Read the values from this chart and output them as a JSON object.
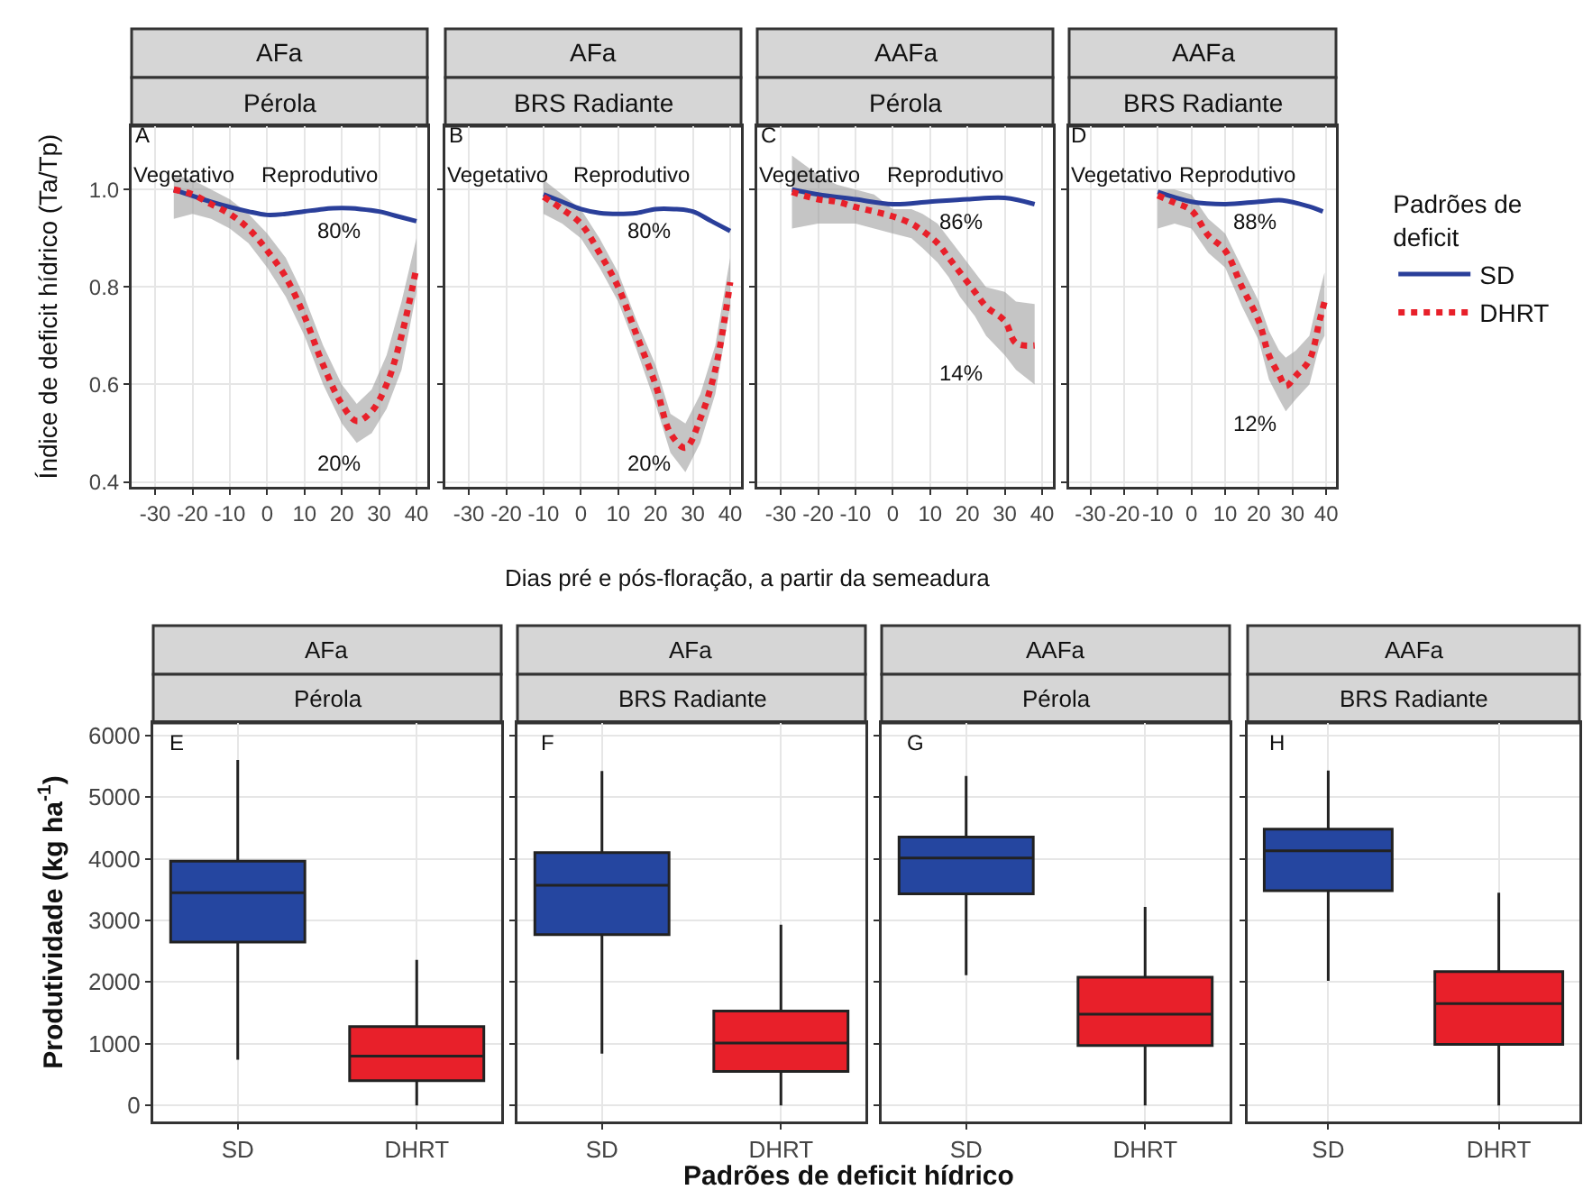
{
  "chart_data": [
    {
      "type": "line",
      "title": "AFa",
      "subtitle": "Pérola",
      "ylabel": "Índice de deficit hídrico (Ta/Tp)",
      "xlabel": "Dias pré e pós-floração, a partir da semeadura",
      "xlim": [
        -36.3,
        42.9
      ],
      "xticks": [
        -30,
        -20,
        -10,
        0,
        10,
        20,
        30,
        40
      ],
      "ylim": [
        0.39,
        1.13
      ],
      "yticks": [
        0.4,
        0.6,
        0.8,
        {
          "value": 1,
          "label": "1.0"
        }
      ],
      "grid": true,
      "legend": false,
      "annotations": [
        "A",
        "Vegetativo",
        "Reprodutivo",
        "80%",
        "20%"
      ],
      "series": [
        {
          "color": "#2a3f9a",
          "line_style": "solid",
          "x": [
            -25,
            -15,
            -5,
            0,
            5,
            10,
            15,
            20,
            25,
            30,
            35,
            40
          ],
          "values": [
            1.0,
            0.975,
            0.955,
            0.948,
            0.95,
            0.955,
            0.96,
            0.962,
            0.96,
            0.955,
            0.945,
            0.935
          ]
        },
        {
          "color": "#e8202a",
          "line_style": "dotted",
          "x": [
            -25,
            -20,
            -15,
            -10,
            -5,
            0,
            5,
            10,
            15,
            20,
            24,
            28,
            32,
            36,
            40
          ],
          "values": [
            1.0,
            0.99,
            0.97,
            0.95,
            0.92,
            0.875,
            0.82,
            0.74,
            0.64,
            0.56,
            0.525,
            0.545,
            0.6,
            0.7,
            0.84
          ],
          "lower": [
            0.94,
            0.95,
            0.94,
            0.92,
            0.89,
            0.84,
            0.78,
            0.7,
            0.6,
            0.52,
            0.48,
            0.5,
            0.55,
            0.63,
            0.79
          ],
          "upper": [
            1.03,
            1.02,
            1.0,
            0.98,
            0.95,
            0.91,
            0.86,
            0.78,
            0.68,
            0.6,
            0.56,
            0.59,
            0.66,
            0.77,
            0.9
          ]
        }
      ]
    },
    {
      "type": "line",
      "title": "AFa",
      "subtitle": "BRS Radiante",
      "xlim": [
        -36.3,
        42.9
      ],
      "xticks": [
        -30,
        -20,
        -10,
        0,
        10,
        20,
        30,
        40
      ],
      "ylim": [
        0.39,
        1.13
      ],
      "yticks": [
        0.4,
        0.6,
        0.8,
        1
      ],
      "grid": true,
      "legend": false,
      "tick_labels": "x",
      "annotations": [
        "B",
        "Vegetativo",
        "Reprodutivo",
        "80%",
        "20%"
      ],
      "series": [
        {
          "color": "#2a3f9a",
          "line_style": "solid",
          "x": [
            -10,
            -5,
            0,
            5,
            10,
            15,
            20,
            25,
            30,
            35,
            40
          ],
          "values": [
            0.99,
            0.975,
            0.96,
            0.952,
            0.95,
            0.952,
            0.96,
            0.96,
            0.955,
            0.935,
            0.915
          ]
        },
        {
          "color": "#e8202a",
          "line_style": "dotted",
          "x": [
            -10,
            -5,
            0,
            5,
            10,
            15,
            20,
            24,
            28,
            32,
            36,
            40
          ],
          "values": [
            0.985,
            0.96,
            0.93,
            0.87,
            0.8,
            0.7,
            0.6,
            0.5,
            0.47,
            0.53,
            0.63,
            0.81
          ],
          "lower": [
            0.95,
            0.93,
            0.9,
            0.84,
            0.77,
            0.67,
            0.56,
            0.46,
            0.42,
            0.48,
            0.58,
            0.76
          ],
          "upper": [
            1.02,
            0.99,
            0.96,
            0.9,
            0.83,
            0.73,
            0.64,
            0.54,
            0.52,
            0.58,
            0.68,
            0.86
          ]
        }
      ]
    },
    {
      "type": "line",
      "title": "AAFa",
      "subtitle": "Pérola",
      "xlim": [
        -36.3,
        42.9
      ],
      "xticks": [
        -30,
        -20,
        -10,
        0,
        10,
        20,
        30,
        40
      ],
      "ylim": [
        0.39,
        1.13
      ],
      "yticks": [
        0.4,
        0.6,
        0.8,
        1
      ],
      "grid": true,
      "legend": false,
      "tick_labels": "x",
      "annotations": [
        "C",
        "Vegetativo",
        "Reprodutivo",
        "86%",
        "14%"
      ],
      "series": [
        {
          "color": "#2a3f9a",
          "line_style": "solid",
          "x": [
            -27,
            -20,
            -10,
            0,
            10,
            20,
            30,
            38
          ],
          "values": [
            1.0,
            0.99,
            0.98,
            0.97,
            0.975,
            0.98,
            0.983,
            0.97
          ]
        },
        {
          "color": "#e8202a",
          "line_style": "dotted",
          "x": [
            -27,
            -20,
            -15,
            -10,
            -5,
            0,
            5,
            8,
            12,
            15,
            18,
            22,
            25,
            30,
            33,
            38
          ],
          "values": [
            0.995,
            0.98,
            0.975,
            0.964,
            0.955,
            0.945,
            0.93,
            0.915,
            0.89,
            0.86,
            0.83,
            0.79,
            0.76,
            0.73,
            0.685,
            0.68
          ],
          "lower": [
            0.92,
            0.93,
            0.93,
            0.93,
            0.92,
            0.91,
            0.9,
            0.88,
            0.85,
            0.82,
            0.78,
            0.74,
            0.7,
            0.66,
            0.63,
            0.6
          ],
          "upper": [
            1.07,
            1.03,
            1.01,
            1.0,
            0.99,
            0.96,
            0.96,
            0.95,
            0.93,
            0.9,
            0.87,
            0.83,
            0.8,
            0.79,
            0.77,
            0.765
          ]
        }
      ]
    },
    {
      "type": "line",
      "title": "AAFa",
      "subtitle": "BRS Radiante",
      "xlim": [
        -36.3,
        42.9
      ],
      "xticks": [
        -30,
        -20,
        -10,
        0,
        10,
        20,
        30,
        40
      ],
      "ylim": [
        0.39,
        1.13
      ],
      "yticks": [
        0.4,
        0.6,
        0.8,
        1
      ],
      "grid": true,
      "legend": "right",
      "legend_title": "Padrões de deficit",
      "tick_labels": "x",
      "annotations": [
        "D",
        "Vegetativo",
        "Reprodutivo",
        "88%",
        "12%"
      ],
      "series": [
        {
          "name": "SD",
          "color": "#2a3f9a",
          "line_style": "solid",
          "x": [
            -10,
            0,
            10,
            20,
            27,
            35,
            39
          ],
          "values": [
            0.995,
            0.975,
            0.97,
            0.975,
            0.978,
            0.965,
            0.955
          ]
        },
        {
          "name": "DHRT",
          "color": "#e8202a",
          "line_style": "dotted",
          "x": [
            -10,
            -5,
            0,
            5,
            10,
            15,
            20,
            23,
            26,
            28,
            31,
            35,
            38,
            39.5
          ],
          "values": [
            0.988,
            0.973,
            0.957,
            0.906,
            0.875,
            0.8,
            0.73,
            0.66,
            0.62,
            0.597,
            0.618,
            0.65,
            0.73,
            0.77
          ],
          "lower": [
            0.92,
            0.93,
            0.92,
            0.87,
            0.84,
            0.76,
            0.69,
            0.61,
            0.57,
            0.545,
            0.57,
            0.6,
            0.68,
            0.7
          ],
          "upper": [
            1.0,
            1.0,
            0.99,
            0.94,
            0.91,
            0.84,
            0.77,
            0.71,
            0.67,
            0.655,
            0.67,
            0.7,
            0.79,
            0.83
          ]
        }
      ]
    },
    {
      "type": "box",
      "title": "AFa",
      "subtitle": "Pérola",
      "ylabel": "Produtividade (kg ha$^{-1}$)",
      "categories": [
        "SD",
        "DHRT"
      ],
      "colors": [
        "#2546a0",
        "#e8202a"
      ],
      "ylim": [
        -260,
        6200
      ],
      "yticks": [
        0,
        1000,
        2000,
        3000,
        4000,
        5000,
        6000
      ],
      "grid": true,
      "annotations": [
        "E"
      ],
      "boxes": [
        {
          "low": 740,
          "q1": 2650,
          "median": 3450,
          "q3": 3960,
          "high": 5600
        },
        {
          "low": 0,
          "q1": 400,
          "median": 800,
          "q3": 1280,
          "high": 2360
        }
      ]
    },
    {
      "type": "box",
      "title": "AFa",
      "subtitle": "BRS Radiante",
      "xlabel": "Padrões de deficit hídrico",
      "categories": [
        "SD",
        "DHRT"
      ],
      "colors": [
        "#2546a0",
        "#e8202a"
      ],
      "ylim": [
        -260,
        6200
      ],
      "yticks": [
        0,
        1000,
        2000,
        3000,
        4000,
        5000,
        6000
      ],
      "grid": true,
      "tick_labels": "x",
      "annotations": [
        "F"
      ],
      "boxes": [
        {
          "low": 840,
          "q1": 2770,
          "median": 3570,
          "q3": 4100,
          "high": 5420
        },
        {
          "low": 0,
          "q1": 550,
          "median": 1010,
          "q3": 1530,
          "high": 2930
        }
      ]
    },
    {
      "type": "box",
      "title": "AAFa",
      "subtitle": "Pérola",
      "categories": [
        "SD",
        "DHRT"
      ],
      "colors": [
        "#2546a0",
        "#e8202a"
      ],
      "ylim": [
        -260,
        6200
      ],
      "yticks": [
        0,
        1000,
        2000,
        3000,
        4000,
        5000,
        6000
      ],
      "grid": true,
      "tick_labels": "x",
      "annotations": [
        "G"
      ],
      "boxes": [
        {
          "low": 2110,
          "q1": 3430,
          "median": 4010,
          "q3": 4350,
          "high": 5340
        },
        {
          "low": 0,
          "q1": 970,
          "median": 1480,
          "q3": 2080,
          "high": 3220
        }
      ]
    },
    {
      "type": "box",
      "title": "AAFa",
      "subtitle": "BRS Radiante",
      "categories": [
        "SD",
        "DHRT"
      ],
      "colors": [
        "#2546a0",
        "#e8202a"
      ],
      "ylim": [
        -260,
        6200
      ],
      "yticks": [
        0,
        1000,
        2000,
        3000,
        4000,
        5000,
        6000
      ],
      "grid": true,
      "tick_labels": "x",
      "annotations": [
        "H"
      ],
      "boxes": [
        {
          "low": 2020,
          "q1": 3480,
          "median": 4130,
          "q3": 4480,
          "high": 5430
        },
        {
          "low": 0,
          "q1": 990,
          "median": 1650,
          "q3": 2170,
          "high": 3450
        }
      ]
    }
  ]
}
